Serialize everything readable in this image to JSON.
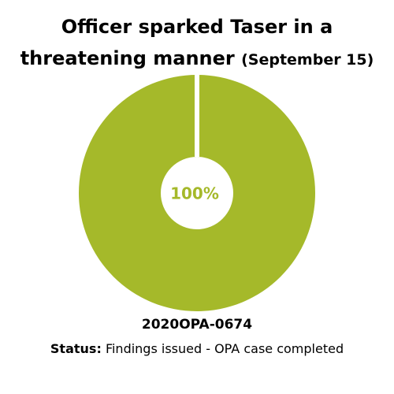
{
  "chart_data": {
    "type": "pie",
    "donut": true,
    "title": "Officer sparked Taser in a threatening manner",
    "subtitle": "(September 15)",
    "values": [
      100
    ],
    "value_labels": [
      "100%"
    ],
    "colors": [
      "#a5b92a"
    ],
    "case_number": "2020OPA-0674",
    "status_label": "Status:",
    "status": "Findings issued - OPA case completed"
  }
}
